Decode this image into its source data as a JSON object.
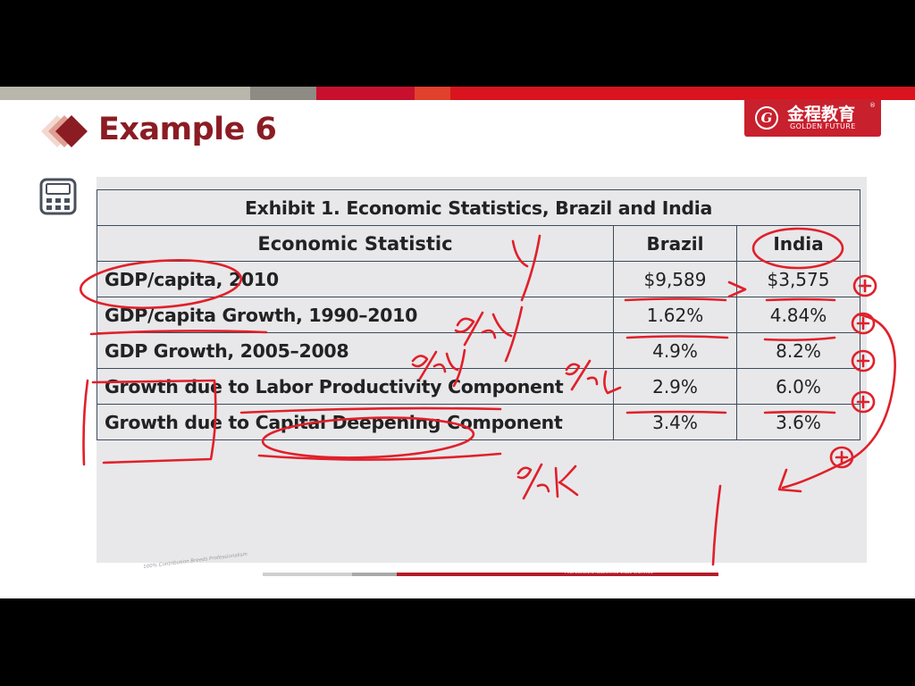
{
  "slide": {
    "title": "Example 6",
    "brand": {
      "logo_letter": "G",
      "name_cn": "金程教育",
      "registered": "®",
      "name_en": "GOLDEN FUTURE"
    },
    "footer": {
      "slogan": "100% Contribution Breeds Professionalism",
      "tagline": "PROFESSIONAL·INNOVATIVE·VALUE CREATING"
    },
    "colors": {
      "title": "#8b1c23",
      "brand": "#c8202d",
      "annotation_ink": "#e0202a"
    }
  },
  "exhibit": {
    "caption": "Exhibit 1. Economic Statistics, Brazil and India",
    "headers": [
      "Economic Statistic",
      "Brazil",
      "India"
    ],
    "rows": [
      {
        "statistic": "GDP/capita, 2010",
        "brazil": "$9,589",
        "india": "$3,575"
      },
      {
        "statistic": "GDP/capita Growth, 1990–2010",
        "brazil": "1.62%",
        "india": "4.84%"
      },
      {
        "statistic": "GDP Growth, 2005–2008",
        "brazil": "4.9%",
        "india": "8.2%"
      },
      {
        "statistic": "Growth due to Labor Productivity Component",
        "brazil": "2.9%",
        "india": "6.0%"
      },
      {
        "statistic": "Growth due to Capital Deepening Component",
        "brazil": "3.4%",
        "india": "3.6%"
      }
    ]
  },
  "annotations": {
    "y_mark": "y",
    "gdp_growth_note": "%y",
    "labor_note": "%L",
    "capital_note": "%K",
    "greater_than": ">"
  },
  "icons": {
    "calculator": "calculator-icon",
    "title_marker": "diamond-icon",
    "brand_logo": "golden-future-logo"
  }
}
